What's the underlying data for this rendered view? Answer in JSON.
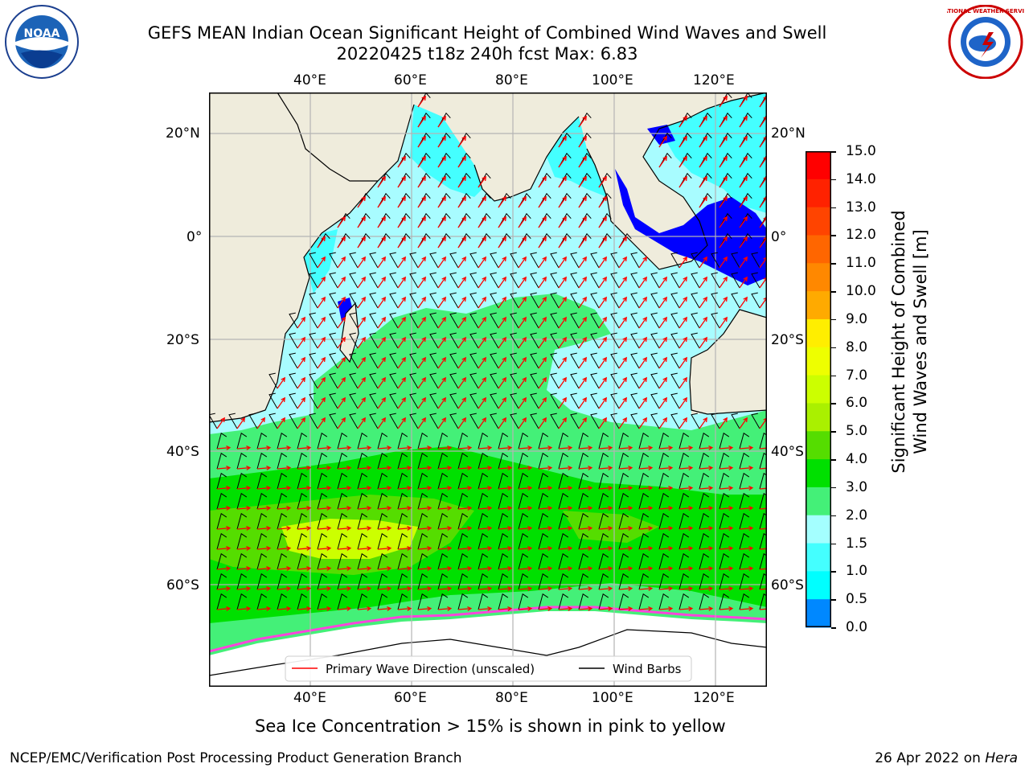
{
  "header": {
    "title_line1": "GEFS MEAN Indian Ocean Significant Height of Combined Wind Waves and Swell",
    "title_line2": "20220425 t18z 240h fcst   Max: 6.83"
  },
  "logos": {
    "noaa_text": "NOAA",
    "nws_text": "NATIONAL WEATHER SERVICE"
  },
  "map": {
    "lon_ticks": [
      "40°E",
      "60°E",
      "80°E",
      "100°E",
      "120°E"
    ],
    "lat_ticks_left": [
      "20°N",
      "0°",
      "20°S",
      "40°S",
      "60°S"
    ],
    "lat_ticks_right": [
      "20°N",
      "0°",
      "20°S",
      "40°S",
      "60°S"
    ],
    "legend": {
      "wave_direction": "Primary Wave Direction (unscaled)",
      "wind_barbs": "Wind Barbs"
    },
    "colors": {
      "land": "#efecdc",
      "sea_ice": "#ffffff",
      "wave_arrow": "#ff0000",
      "wind_barb": "#000000",
      "grid": "#b4b4b4"
    }
  },
  "colorbar": {
    "label_line1": "Significant Height of Combined",
    "label_line2": "Wind Waves and Swell [m]",
    "tick_labels": [
      "15.0",
      "14.0",
      "13.0",
      "12.0",
      "11.0",
      "10.0",
      "9.0",
      "8.0",
      "7.0",
      "6.0",
      "5.0",
      "4.0",
      "3.0",
      "2.0",
      "1.5",
      "1.0",
      "0.5",
      "0.0"
    ],
    "bin_colors_top_to_bottom": [
      "#ff0000",
      "#ff2200",
      "#ff4400",
      "#ff6600",
      "#ff8800",
      "#ffaa00",
      "#ffee00",
      "#eeff00",
      "#ccff00",
      "#aaf000",
      "#55dd00",
      "#00e000",
      "#44f078",
      "#a4ffff",
      "#44ffff",
      "#00ffff",
      "#0088ff",
      "#0000ff"
    ]
  },
  "notes": {
    "sea_ice": "Sea Ice Concentration > 15% is shown in pink to yellow"
  },
  "footer": {
    "left": "NCEP/EMC/Verification Post Processing Product Generation Branch",
    "right_prefix": "26 Apr 2022 on ",
    "right_machine": "Hera"
  }
}
